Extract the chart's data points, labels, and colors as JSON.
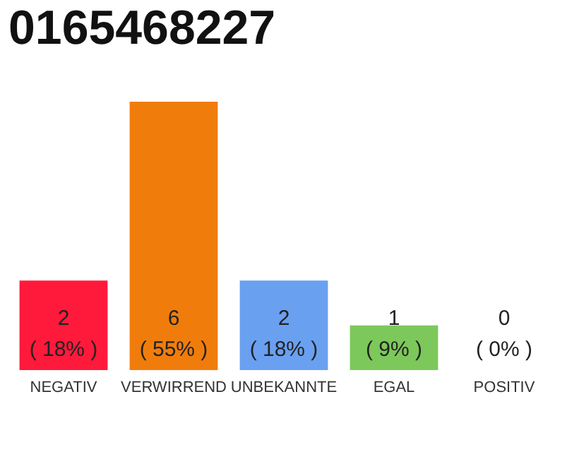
{
  "chart_data": {
    "type": "bar",
    "title": "0165468227",
    "categories": [
      "NEGATIV",
      "VERWIRREND",
      "UNBEKANNTE",
      "EGAL",
      "POSITIV"
    ],
    "values": [
      2,
      6,
      2,
      1,
      0
    ],
    "colors": [
      "#ff1a3c",
      "#f07d0b",
      "#6aa0f0",
      "#7dc85a",
      "#cccccc"
    ],
    "value_labels": [
      "2\n( 18% )",
      "6\n( 55% )",
      "2\n( 18% )",
      "1\n( 9% )",
      "0\n( 0% )"
    ]
  }
}
